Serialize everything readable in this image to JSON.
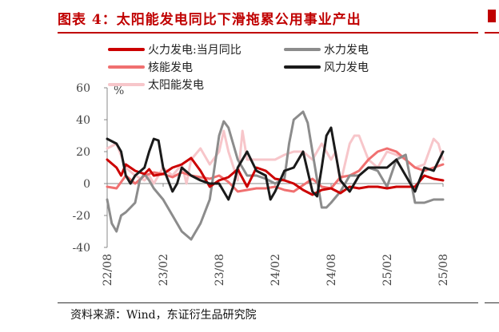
{
  "figure": {
    "title": "图表 4：太阳能发电同比下滑拖累公用事业产出",
    "source": "资料来源：Wind，东证衍生品研究院"
  },
  "colors": {
    "thermal": "#cc0000",
    "hydro": "#8c8c8c",
    "nuclear": "#f07070",
    "wind": "#1a1a1a",
    "solar": "#f7c6ca",
    "accent": "#c00000"
  },
  "chart_data": {
    "type": "line",
    "ylabel": "%",
    "ylim": [
      -40,
      60
    ],
    "yticks": [
      -40,
      -20,
      0,
      20,
      40,
      60
    ],
    "xlim": [
      0,
      36
    ],
    "xticks": [
      {
        "x": 0,
        "label": "22/08"
      },
      {
        "x": 6,
        "label": "23/02"
      },
      {
        "x": 12,
        "label": "23/08"
      },
      {
        "x": 18,
        "label": "24/02"
      },
      {
        "x": 24,
        "label": "24/08"
      },
      {
        "x": 30,
        "label": "25/02"
      },
      {
        "x": 36,
        "label": "25/08"
      }
    ],
    "legend": [
      "火力发电:当月同比",
      "水力发电",
      "核能发电",
      "风力发电",
      "太阳能发电"
    ],
    "legend_position": "top-left",
    "grid": false,
    "series": [
      {
        "name": "火力发电:当月同比",
        "key": "thermal",
        "width": 3,
        "x": [
          0,
          1,
          1.5,
          2,
          3,
          4,
          4.5,
          5,
          6,
          7,
          8,
          9,
          10,
          11,
          12,
          13,
          14,
          15,
          16,
          17,
          18,
          19,
          20,
          21,
          22,
          23,
          24,
          25,
          26,
          27,
          28,
          29,
          30,
          31,
          32,
          33,
          34,
          35,
          36
        ],
        "values": [
          15,
          10,
          5,
          12,
          8,
          6,
          9,
          5,
          6,
          10,
          12,
          16,
          8,
          -2,
          2,
          4,
          9,
          -2,
          10,
          8,
          3,
          2,
          0,
          -4,
          -7,
          -4,
          -3,
          -6,
          -2,
          -3,
          -2,
          -2,
          -3,
          -2,
          -2,
          -2,
          5,
          3,
          2
        ]
      },
      {
        "name": "水力发电",
        "key": "hydro",
        "width": 3,
        "x": [
          0,
          0.5,
          1,
          1.5,
          2,
          2.5,
          3,
          3.5,
          4,
          4.5,
          5,
          6,
          7,
          8,
          9,
          10,
          11,
          11.5,
          12,
          12.5,
          13,
          14,
          15,
          16,
          17,
          18,
          19,
          19.5,
          20,
          21,
          21.5,
          22,
          23,
          23.5,
          24,
          25,
          26,
          27,
          28,
          29,
          30,
          31,
          32,
          33,
          34,
          35,
          36
        ],
        "values": [
          -10,
          -25,
          -30,
          -20,
          -18,
          -15,
          -12,
          2,
          6,
          2,
          -3,
          -10,
          -20,
          -30,
          -35,
          -25,
          -10,
          10,
          30,
          39,
          35,
          15,
          5,
          5,
          3,
          0,
          3,
          25,
          40,
          45,
          38,
          20,
          -15,
          -15,
          -12,
          -5,
          5,
          5,
          10,
          8,
          -2,
          15,
          18,
          -12,
          -12,
          -10,
          -10
        ]
      },
      {
        "name": "核能发电",
        "key": "nuclear",
        "width": 3,
        "x": [
          0,
          1,
          2,
          3,
          4,
          5,
          6,
          7,
          8,
          9,
          10,
          11,
          12,
          13,
          14,
          15,
          16,
          17,
          18,
          19,
          20,
          21,
          22,
          23,
          24,
          25,
          26,
          27,
          28,
          29,
          30,
          31,
          32,
          33,
          34,
          35,
          36
        ],
        "values": [
          -2,
          -3,
          5,
          0,
          5,
          7,
          6,
          4,
          7,
          5,
          4,
          3,
          5,
          1,
          -5,
          -4,
          -3,
          -3,
          -2,
          -4,
          -5,
          -1,
          3,
          -2,
          -3,
          4,
          5,
          8,
          15,
          20,
          22,
          20,
          15,
          10,
          8,
          10,
          12
        ]
      },
      {
        "name": "风力发电",
        "key": "wind",
        "width": 3,
        "x": [
          0,
          1,
          1.5,
          2,
          2.5,
          3,
          4,
          4.5,
          5,
          5.5,
          6,
          7,
          7.5,
          8,
          9,
          10,
          11,
          12,
          13,
          13.5,
          14,
          15,
          16,
          17,
          17.5,
          18,
          19,
          20,
          21,
          22,
          22.5,
          23,
          23.5,
          24,
          25,
          26,
          27,
          28,
          29,
          30,
          31,
          32,
          33,
          34,
          35,
          36
        ],
        "values": [
          28,
          25,
          20,
          5,
          0,
          5,
          10,
          20,
          28,
          27,
          10,
          -5,
          0,
          10,
          5,
          2,
          0,
          0,
          -10,
          -2,
          10,
          20,
          8,
          5,
          -10,
          -5,
          8,
          10,
          20,
          -5,
          -8,
          10,
          30,
          35,
          2,
          -5,
          5,
          10,
          10,
          10,
          15,
          5,
          -5,
          10,
          8,
          20
        ]
      },
      {
        "name": "太阳能发电",
        "key": "solar",
        "width": 3,
        "x": [
          0,
          1,
          2,
          3,
          4,
          4.5,
          5,
          6,
          7,
          8,
          8.5,
          9,
          10,
          11,
          12,
          12.5,
          13,
          14,
          14.5,
          15,
          16,
          17,
          18,
          19,
          20,
          21,
          22,
          23,
          24,
          24.5,
          25,
          26,
          26.5,
          27,
          28,
          29,
          30,
          31,
          32,
          33,
          34,
          35,
          35.5,
          36
        ],
        "values": [
          22,
          25,
          10,
          5,
          2,
          5,
          0,
          10,
          5,
          12,
          0,
          15,
          22,
          12,
          20,
          33,
          20,
          2,
          33,
          15,
          15,
          15,
          15,
          18,
          20,
          20,
          15,
          25,
          15,
          20,
          0,
          25,
          30,
          30,
          15,
          10,
          20,
          18,
          15,
          10,
          12,
          28,
          25,
          15
        ]
      }
    ]
  }
}
